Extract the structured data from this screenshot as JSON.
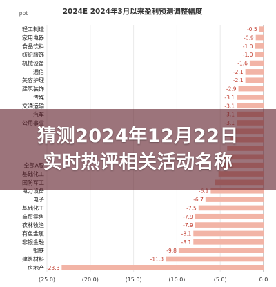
{
  "chart_data": {
    "type": "bar",
    "orientation": "horizontal",
    "title": "2024E 2024年3月以来盈利预测调整幅度",
    "unit": "ppt",
    "categories": [
      "轻工制造",
      "家用电器",
      "食品饮料",
      "纺织服饰",
      "机械设备",
      "通信",
      "美容护理",
      "建筑装饰",
      "传媒",
      "交通运输",
      "汽车",
      "公用事业",
      "",
      "",
      "",
      "",
      "全部A股",
      "基础化工",
      "国防军工",
      "电力设备",
      "电子",
      "基础化工",
      "商贸零售",
      "农林牧渔",
      "有色金属",
      "非银金融",
      "钢铁",
      "建筑材料",
      "房地产"
    ],
    "values": [
      -0.5,
      -0.9,
      -1.0,
      -1.0,
      -1.6,
      -2.1,
      -2.1,
      -2.9,
      -3.1,
      -3.1,
      -3.1,
      -3.1,
      -3.4,
      -3.8,
      -4.2,
      -4.6,
      -4.9,
      -5.2,
      -5.6,
      -6.1,
      -6.7,
      -7.5,
      -7.9,
      -7.9,
      -8.1,
      -8.1,
      -9.8,
      -11.3,
      -23.3
    ],
    "value_labels": [
      "-0.5",
      "-0.9",
      "-1.0",
      "-1.0",
      "-1.6",
      "-2.1",
      "-2.1",
      "-2.9",
      "-3.1",
      "-3.1",
      "-3.1",
      "-3.1",
      "",
      "",
      "",
      "",
      "",
      "",
      "",
      "-6.1",
      "-6.7",
      "-7.5",
      "-7.9",
      "-7.9",
      "-8.1",
      "-8.1",
      "-9.8",
      "-11.3",
      "-23.3"
    ],
    "x_ticks": [
      "(25.0)",
      "(20.0)",
      "(15.0)",
      "(10.0)",
      "(5.0)",
      "0.0"
    ],
    "xlim": [
      -25,
      0
    ],
    "grid": true
  },
  "overlay": {
    "line1": "猜测2024年12月22日",
    "line2": "实时热评相关活动名称"
  },
  "colors": {
    "bar": "#f2b4a6",
    "value_label": "#c0392b",
    "overlay": "#601e2a"
  }
}
